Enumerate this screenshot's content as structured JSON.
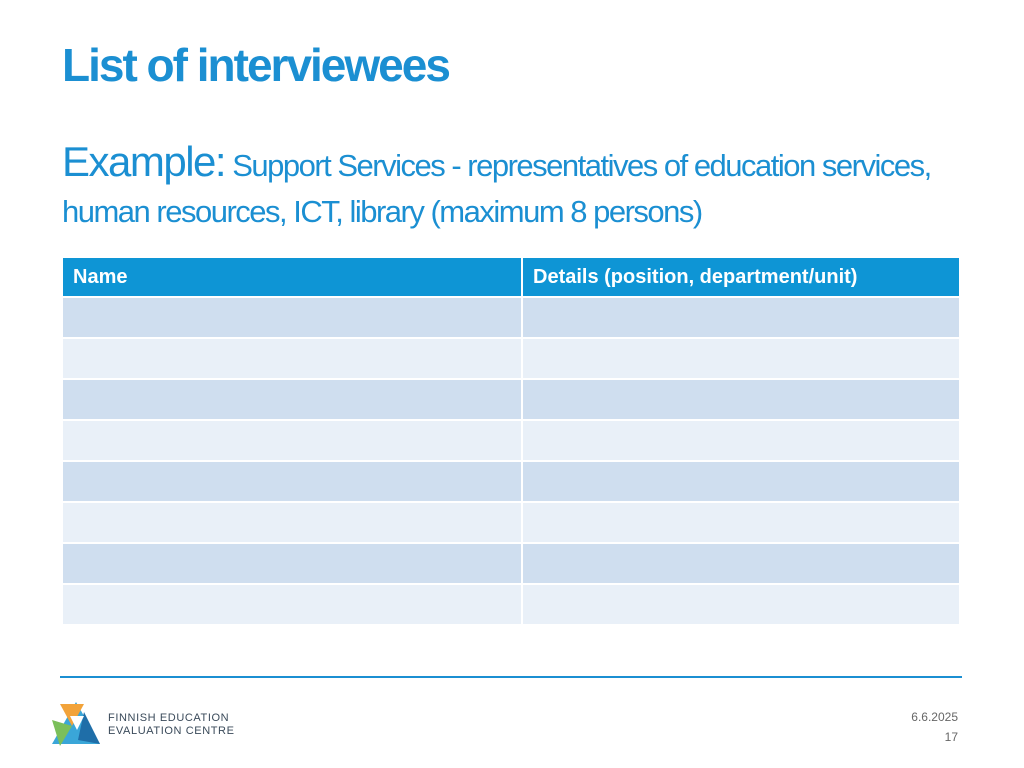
{
  "slide": {
    "title": "List of interviewees",
    "subtitle_lead": "Example:",
    "subtitle_rest": " Support Services - representatives of education services, human resources, ICT, library (maximum 8 persons)"
  },
  "table": {
    "headers": [
      "Name",
      "Details (position, department/unit)"
    ],
    "rows": [
      [
        "",
        ""
      ],
      [
        "",
        ""
      ],
      [
        "",
        ""
      ],
      [
        "",
        ""
      ],
      [
        "",
        ""
      ],
      [
        "",
        ""
      ],
      [
        "",
        ""
      ],
      [
        "",
        ""
      ]
    ]
  },
  "footer": {
    "logo_line1": "FINNISH EDUCATION",
    "logo_line2": "EVALUATION CENTRE",
    "date": "6.6.2025",
    "page_number": "17"
  },
  "colors": {
    "accent": "#1b8fd2",
    "header_bg": "#0e95d5",
    "row_dark": "#cfdeef",
    "row_light": "#e9f0f8"
  }
}
